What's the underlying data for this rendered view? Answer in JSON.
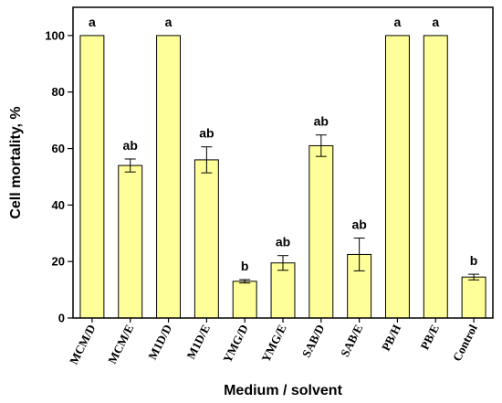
{
  "chart_data": {
    "type": "bar",
    "title": "",
    "xlabel": "Medium / solvent",
    "ylabel": "Cell mortality, %",
    "ylim": [
      0,
      110
    ],
    "yticks": [
      0,
      20,
      40,
      60,
      80,
      100
    ],
    "grid": false,
    "legend": "none",
    "colors": {
      "bar_fill": "#ffff99",
      "bar_stroke": "#000000"
    },
    "categories": [
      "MCM/D",
      "MCM/E",
      "M1D/D",
      "M1D/E",
      "YMG/D",
      "YMG/E",
      "SAB/D",
      "SAB/E",
      "PB/H",
      "PB/E",
      "Control"
    ],
    "values": [
      100,
      54,
      100,
      56,
      13,
      19.5,
      61,
      22.5,
      100,
      100,
      14.5
    ],
    "errors": [
      0,
      2.3,
      0,
      4.6,
      0.6,
      2.6,
      3.8,
      5.8,
      0,
      0,
      1.0
    ],
    "annotations": [
      "a",
      "ab",
      "a",
      "ab",
      "b",
      "ab",
      "ab",
      "ab",
      "a",
      "a",
      "b"
    ]
  }
}
